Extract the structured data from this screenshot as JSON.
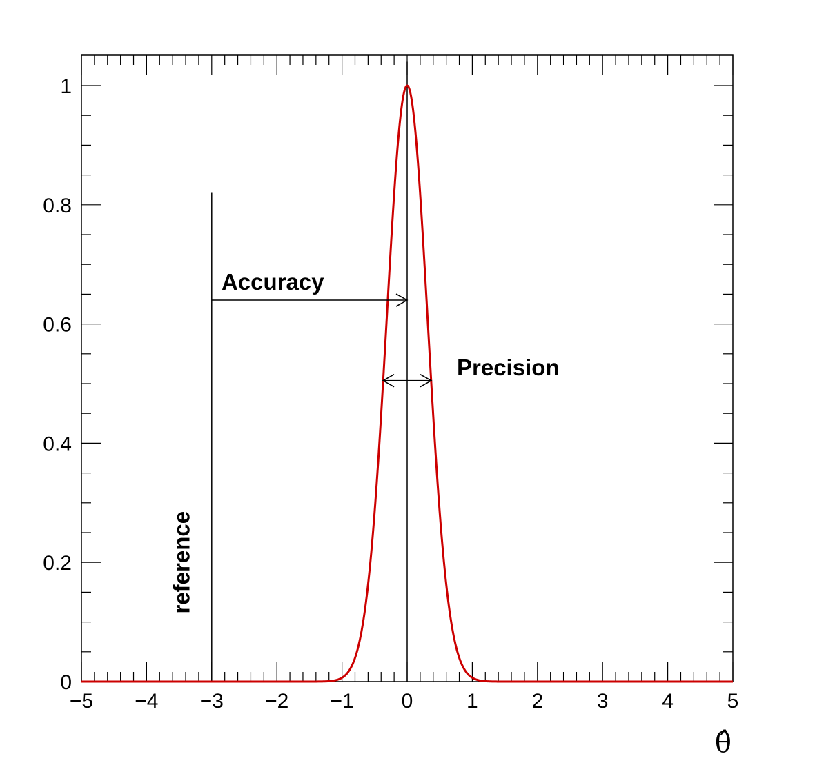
{
  "chart_data": {
    "type": "line",
    "title": "",
    "xlabel": "θ̂",
    "ylabel": "",
    "xlim": [
      -5,
      5
    ],
    "ylim": [
      0,
      1.05
    ],
    "x_ticks": [
      -5,
      -4,
      -3,
      -2,
      -1,
      0,
      1,
      2,
      3,
      4,
      5
    ],
    "x_tick_labels": [
      "−5",
      "−4",
      "−3",
      "−2",
      "−1",
      "0",
      "1",
      "2",
      "3",
      "4",
      "5"
    ],
    "y_ticks": [
      0,
      0.2,
      0.4,
      0.6,
      0.8,
      1
    ],
    "y_tick_labels": [
      "0",
      "0.2",
      "0.4",
      "0.6",
      "0.8",
      "1"
    ],
    "grid": false,
    "series": [
      {
        "color": "#cc0000",
        "x": [
          -5,
          -1.2,
          -1.0,
          -0.9,
          -0.8,
          -0.7,
          -0.6,
          -0.5,
          -0.4,
          -0.3,
          -0.2,
          -0.1,
          0,
          0.1,
          0.2,
          0.3,
          0.4,
          0.5,
          0.6,
          0.7,
          0.8,
          0.9,
          1.0,
          1.2,
          5
        ],
        "y": [
          0,
          0.0,
          0.004,
          0.012,
          0.029,
          0.066,
          0.135,
          0.249,
          0.411,
          0.607,
          0.801,
          0.946,
          1.0,
          0.946,
          0.801,
          0.607,
          0.411,
          0.249,
          0.135,
          0.066,
          0.029,
          0.012,
          0.004,
          0.0,
          0
        ]
      }
    ],
    "vertical_lines": [
      {
        "x": 0,
        "y_top": 1.04
      },
      {
        "x": -3,
        "y_top": 0.82
      }
    ],
    "annotations": {
      "reference": {
        "text": "reference",
        "x": -3.45,
        "y": 0.2
      },
      "accuracy": {
        "text": "Accuracy",
        "x": -2.8,
        "y": 0.66,
        "arrow_from": -3,
        "arrow_to": 0,
        "arrow_y": 0.64
      },
      "precision": {
        "text": "Precision",
        "x": 0.75,
        "y": 0.52,
        "arrow_from": -0.37,
        "arrow_to": 0.37,
        "arrow_y": 0.505
      }
    }
  }
}
